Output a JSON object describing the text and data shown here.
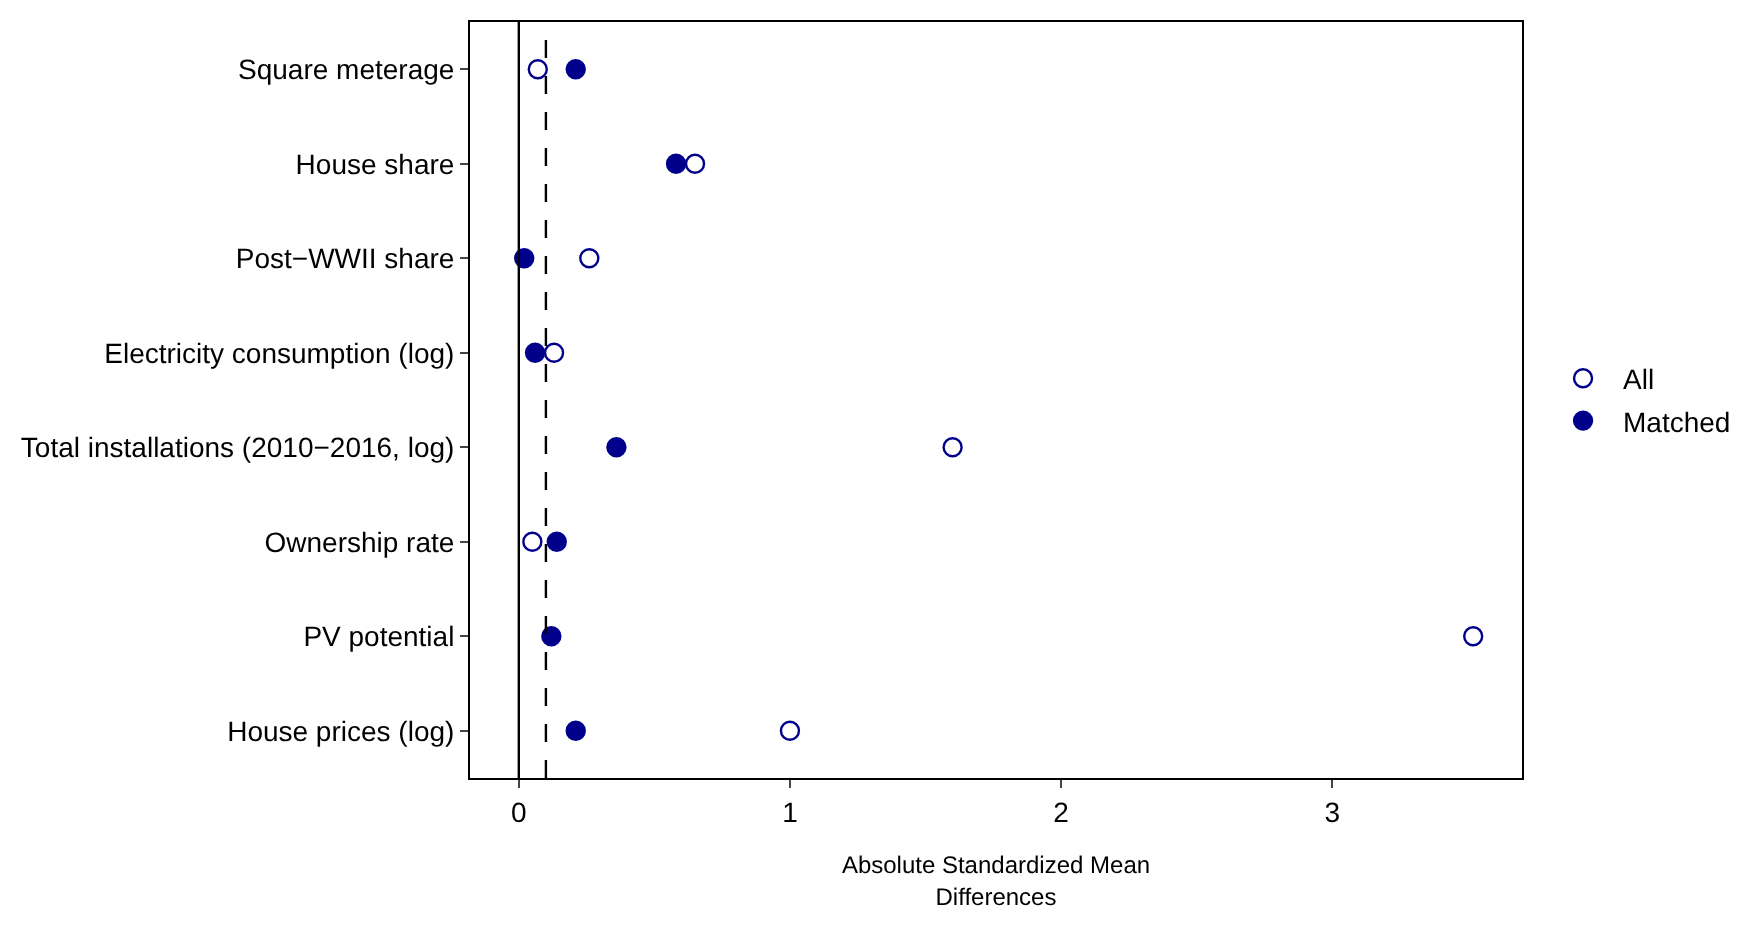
{
  "chart_data": {
    "type": "scatter",
    "orientation": "horizontal",
    "xlabel": "Absolute Standardized Mean\nDifferences",
    "categories": [
      "Square meterage",
      "House share",
      "Post−WWII share",
      "Electricity consumption (log)",
      "Total installations (2010−2016, log)",
      "Ownership rate",
      "PV potential",
      "House prices (log)"
    ],
    "series": [
      {
        "name": "All",
        "color": "#00008b",
        "values": [
          0.07,
          0.65,
          0.26,
          0.13,
          1.6,
          0.05,
          3.52,
          1.0
        ]
      },
      {
        "name": "Matched",
        "color": "#00008b",
        "values": [
          0.21,
          0.58,
          0.02,
          0.06,
          0.36,
          0.14,
          0.12,
          0.21
        ]
      }
    ],
    "xlim": [
      -0.18,
      3.7
    ],
    "xticks": [
      0,
      1,
      2,
      3
    ],
    "legend": "right",
    "marker": "circle",
    "ref_lines": [
      {
        "axis": "x",
        "value": 0,
        "line_style": "solid",
        "color": "#000000"
      },
      {
        "axis": "x",
        "value": 0.1,
        "line_style": "dashed",
        "color": "#000000"
      }
    ]
  }
}
